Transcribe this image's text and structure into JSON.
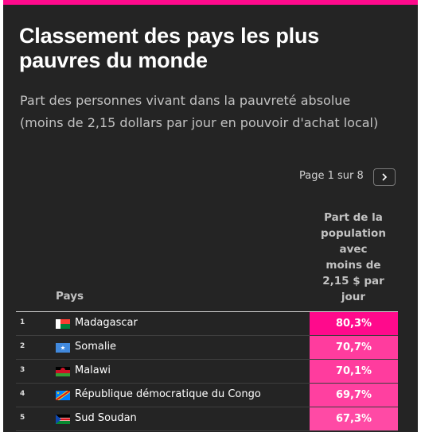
{
  "title": "Classement des pays les plus pauvres du monde",
  "subtitle": "Part des personnes vivant dans la pauvreté absolue (moins de 2,15 dollars par jour en pouvoir d'achat local)",
  "pager": {
    "text": "Page 1 sur 8",
    "next_icon": "chevron-right-icon"
  },
  "table": {
    "col_country": "Pays",
    "col_value_lines": [
      "Part de la",
      "population",
      "avec",
      "moins de",
      "2,15 $ par",
      "jour"
    ],
    "rows": [
      {
        "rank": "1",
        "country": "Madagascar",
        "value": "80,3%",
        "flag": "madagascar-flag",
        "color": "#ff0a8c"
      },
      {
        "rank": "2",
        "country": "Somalie",
        "value": "70,7%",
        "flag": "somalia-flag",
        "color": "#ff3c9e"
      },
      {
        "rank": "3",
        "country": "Malawi",
        "value": "70,1%",
        "flag": "malawi-flag",
        "color": "#ff3c9e"
      },
      {
        "rank": "4",
        "country": "République démocratique du Congo",
        "value": "69,7%",
        "flag": "drc-flag",
        "color": "#ff40a0"
      },
      {
        "rank": "5",
        "country": "Sud Soudan",
        "value": "67,3%",
        "flag": "south-sudan-flag",
        "color": "#ff4aa5"
      }
    ]
  },
  "colors": {
    "accent": "#ff0a8c",
    "background": "#242424"
  }
}
